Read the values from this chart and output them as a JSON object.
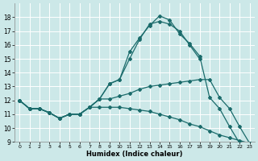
{
  "xlabel": "Humidex (Indice chaleur)",
  "background_color": "#cce8e8",
  "line_color": "#1a6b6b",
  "grid_color": "#ffffff",
  "xlim": [
    -0.5,
    23.5
  ],
  "ylim": [
    9,
    19
  ],
  "xticks": [
    0,
    1,
    2,
    3,
    4,
    5,
    6,
    7,
    8,
    9,
    10,
    11,
    12,
    13,
    14,
    15,
    16,
    17,
    18,
    19,
    20,
    21,
    22,
    23
  ],
  "yticks": [
    9,
    10,
    11,
    12,
    13,
    14,
    15,
    16,
    17,
    18
  ],
  "lines": [
    {
      "x": [
        0,
        1,
        2,
        3,
        4,
        5,
        6,
        7,
        8,
        9,
        10,
        11,
        12,
        13,
        14,
        15,
        16,
        17,
        18,
        19,
        20,
        21,
        22,
        23
      ],
      "y": [
        12.0,
        11.4,
        11.4,
        11.1,
        10.7,
        11.0,
        11.0,
        11.5,
        11.5,
        11.5,
        11.5,
        11.4,
        11.3,
        11.2,
        11.0,
        10.8,
        10.6,
        10.3,
        10.1,
        9.8,
        9.5,
        9.3,
        9.1,
        8.9
      ]
    },
    {
      "x": [
        0,
        1,
        2,
        3,
        4,
        5,
        6,
        7,
        8,
        9,
        10,
        11,
        12,
        13,
        14,
        15,
        16,
        17,
        18,
        19,
        20,
        21,
        22,
        23
      ],
      "y": [
        12.0,
        11.4,
        11.4,
        11.1,
        10.7,
        11.0,
        11.0,
        11.5,
        12.1,
        12.1,
        12.3,
        12.5,
        12.8,
        13.0,
        13.1,
        13.2,
        13.3,
        13.4,
        13.5,
        13.5,
        12.2,
        11.4,
        10.1,
        8.9
      ]
    },
    {
      "x": [
        0,
        1,
        2,
        3,
        4,
        5,
        6,
        7,
        8,
        9,
        10,
        11,
        12,
        13,
        14,
        15,
        16,
        17,
        18,
        19,
        20,
        21,
        22,
        23
      ],
      "y": [
        12.0,
        11.4,
        11.4,
        11.1,
        10.7,
        11.0,
        11.0,
        11.5,
        12.1,
        13.2,
        13.5,
        15.0,
        16.4,
        17.5,
        17.7,
        17.5,
        17.0,
        16.0,
        15.0,
        null,
        null,
        null,
        null,
        null
      ]
    },
    {
      "x": [
        0,
        1,
        2,
        3,
        4,
        5,
        6,
        7,
        8,
        9,
        10,
        11,
        12,
        13,
        14,
        15,
        16,
        17,
        18,
        19,
        20,
        21,
        22,
        23
      ],
      "y": [
        12.0,
        11.4,
        11.4,
        11.1,
        10.7,
        11.0,
        11.0,
        11.5,
        12.1,
        13.2,
        13.5,
        15.5,
        16.5,
        17.4,
        18.1,
        17.8,
        16.8,
        16.1,
        15.2,
        12.2,
        11.4,
        10.1,
        8.9,
        null
      ]
    }
  ]
}
